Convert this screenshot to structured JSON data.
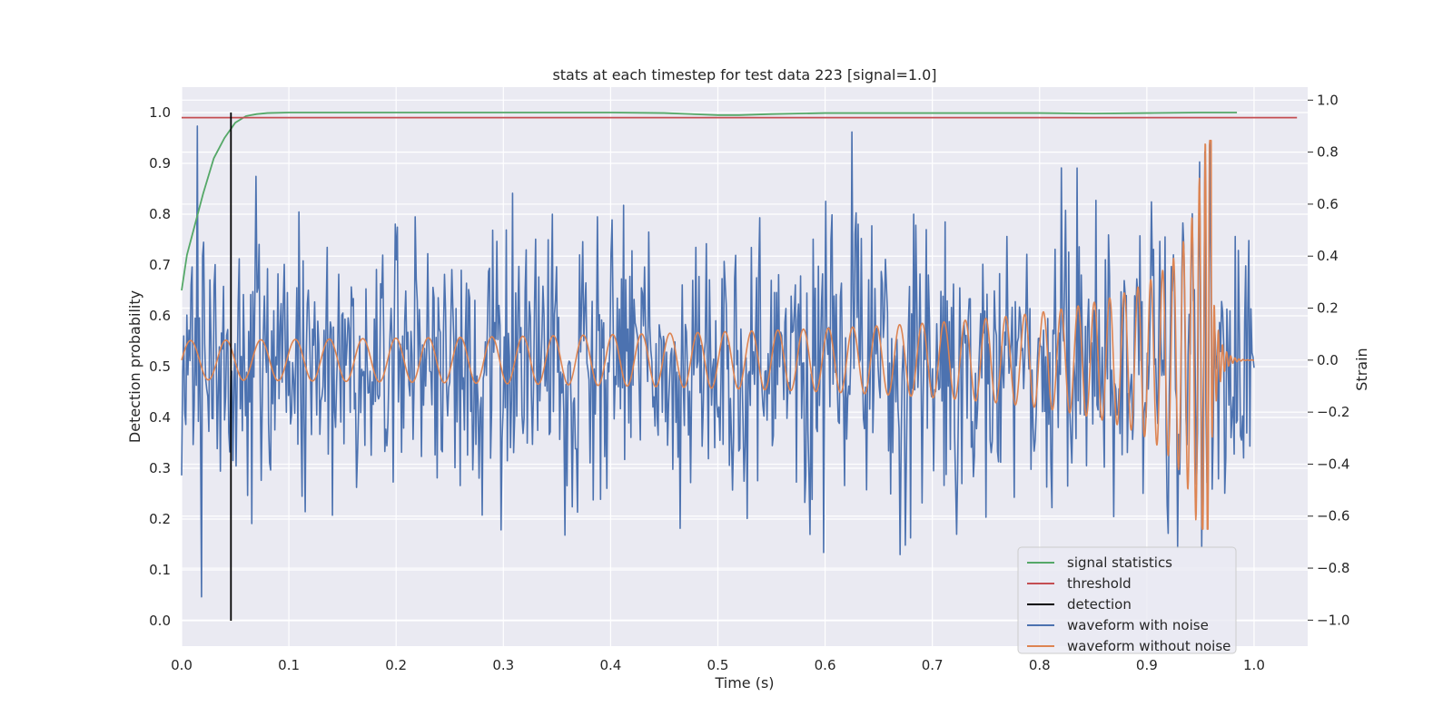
{
  "chart_data": {
    "type": "line",
    "title": "stats at each timestep for test data 223 [signal=1.0]",
    "xlabel": "Time (s)",
    "ylabel": "Detection probability",
    "ylabel_right": "Strain",
    "xlim": [
      0.0,
      1.05
    ],
    "ylim": [
      -0.05,
      1.05
    ],
    "ylim_right": [
      -1.1,
      1.05
    ],
    "x_ticks": [
      0.0,
      0.1,
      0.2,
      0.3,
      0.4,
      0.5,
      0.6,
      0.7,
      0.8,
      0.9,
      1.0
    ],
    "x_tick_labels": [
      "0.0",
      "0.1",
      "0.2",
      "0.3",
      "0.4",
      "0.5",
      "0.6",
      "0.7",
      "0.8",
      "0.9",
      "1.0"
    ],
    "y_ticks": [
      0.0,
      0.1,
      0.2,
      0.3,
      0.4,
      0.5,
      0.6,
      0.7,
      0.8,
      0.9,
      1.0
    ],
    "y_tick_labels": [
      "0.0",
      "0.1",
      "0.2",
      "0.3",
      "0.4",
      "0.5",
      "0.6",
      "0.7",
      "0.8",
      "0.9",
      "1.0"
    ],
    "y_right_ticks": [
      -1.0,
      -0.8,
      -0.6,
      -0.4,
      -0.2,
      0.0,
      0.2,
      0.4,
      0.6,
      0.8,
      1.0
    ],
    "y_right_tick_labels": [
      "−1.0",
      "−0.8",
      "−0.6",
      "−0.4",
      "−0.2",
      "0.0",
      "0.2",
      "0.4",
      "0.6",
      "0.8",
      "1.0"
    ],
    "grid": true,
    "legend_position": "lower-right",
    "series": [
      {
        "name": "signal statistics",
        "axis": "left",
        "color": "#55a868",
        "x": [
          0.0,
          0.005,
          0.01,
          0.02,
          0.03,
          0.04,
          0.05,
          0.06,
          0.07,
          0.08,
          0.1,
          0.2,
          0.3,
          0.4,
          0.45,
          0.5,
          0.52,
          0.55,
          0.6,
          0.7,
          0.8,
          0.85,
          0.9,
          0.95,
          0.984
        ],
        "y": [
          0.65,
          0.72,
          0.76,
          0.84,
          0.91,
          0.95,
          0.98,
          0.993,
          0.997,
          0.999,
          1.0,
          1.0,
          1.0,
          1.0,
          0.999,
          0.995,
          0.995,
          0.997,
          0.999,
          0.999,
          0.999,
          0.998,
          0.999,
          1.0,
          1.0
        ]
      },
      {
        "name": "threshold",
        "axis": "left",
        "color": "#c44e52",
        "x": [
          0.0,
          1.04
        ],
        "y": [
          0.99,
          0.99
        ]
      },
      {
        "name": "detection",
        "axis": "left",
        "color": "#000000",
        "x": [
          0.046,
          0.046
        ],
        "y": [
          0.0,
          1.0
        ]
      },
      {
        "name": "waveform with noise",
        "axis": "right",
        "color": "#4c72b0",
        "x_range": [
          0.0,
          1.0
        ],
        "noise_std": 0.25,
        "noise_seed": 223
      },
      {
        "name": "waveform without noise",
        "axis": "right",
        "color": "#dd8452",
        "x_range": [
          0.0,
          1.0
        ],
        "f0_hz": 30,
        "f_coalescence_hz": 180,
        "t_coalescence": 0.96,
        "amp0": 0.075,
        "peak_amp": 0.85,
        "min_amp": -0.65
      }
    ]
  }
}
